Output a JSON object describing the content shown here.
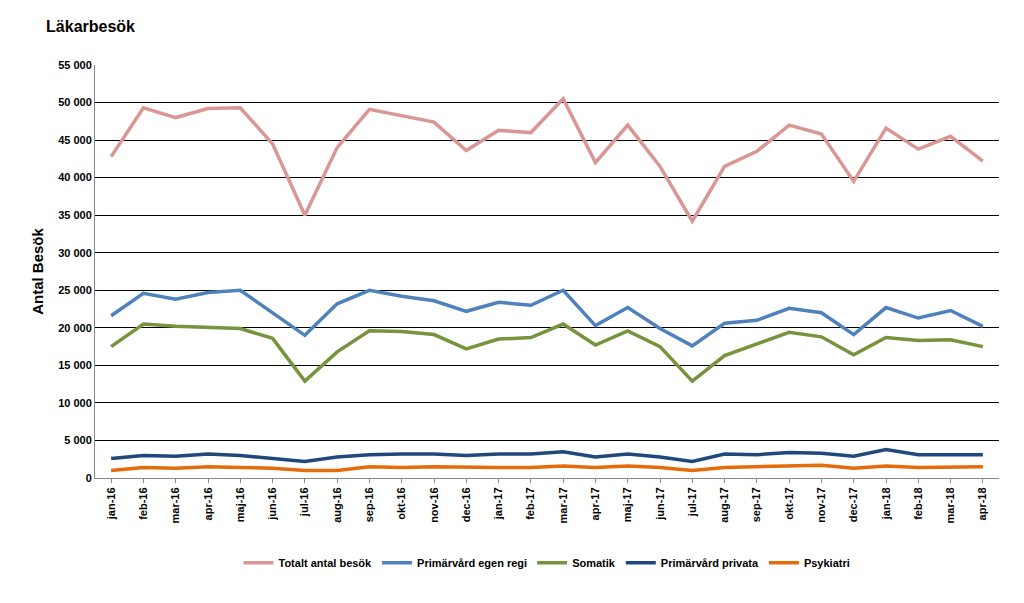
{
  "chart_data": {
    "type": "line",
    "title": "Läkarbesök",
    "y_label": "Antal Besök",
    "categories": [
      "jan-16",
      "feb-16",
      "mar-16",
      "apr-16",
      "maj-16",
      "jun-16",
      "jul-16",
      "aug-16",
      "sep-16",
      "okt-16",
      "nov-16",
      "dec-16",
      "jan-17",
      "feb-17",
      "mar-17",
      "apr-17",
      "maj-17",
      "jun-17",
      "jul-17",
      "aug-17",
      "sep-17",
      "okt-17",
      "nov-17",
      "dec-17",
      "jan-18",
      "feb-18",
      "mar-18",
      "apr-18"
    ],
    "series": [
      {
        "name": "Totalt antal besök",
        "color": "#d99694",
        "values": [
          42800,
          49300,
          48000,
          49200,
          49300,
          44500,
          35000,
          44000,
          49100,
          48200,
          47400,
          43600,
          46300,
          46000,
          50500,
          42000,
          47000,
          41500,
          34200,
          41500,
          43500,
          47000,
          45800,
          39500,
          46600,
          43800,
          45500,
          42200
        ]
      },
      {
        "name": "Primärvård egen regi",
        "color": "#4f81bd",
        "values": [
          21600,
          24600,
          23800,
          24700,
          25000,
          22000,
          19000,
          23200,
          25000,
          24200,
          23600,
          22200,
          23400,
          23000,
          25000,
          20300,
          22700,
          19900,
          17600,
          20600,
          21000,
          22600,
          22000,
          19100,
          22700,
          21300,
          22300,
          20200
        ]
      },
      {
        "name": "Somatik",
        "color": "#77933c",
        "values": [
          17500,
          20500,
          20200,
          20000,
          19900,
          18600,
          12900,
          16800,
          19600,
          19500,
          19100,
          17200,
          18500,
          18700,
          20500,
          17700,
          19600,
          17500,
          12900,
          16300,
          17900,
          19400,
          18800,
          16400,
          18700,
          18300,
          18400,
          17500
        ]
      },
      {
        "name": "Primärvård privata",
        "color": "#1f497d",
        "values": [
          2600,
          3000,
          2900,
          3200,
          3000,
          2600,
          2200,
          2800,
          3100,
          3200,
          3200,
          3000,
          3200,
          3200,
          3500,
          2800,
          3200,
          2800,
          2200,
          3200,
          3100,
          3400,
          3300,
          2900,
          3800,
          3100,
          3100,
          3100
        ]
      },
      {
        "name": "Psykiatri",
        "color": "#e46c0a",
        "values": [
          1000,
          1400,
          1300,
          1500,
          1400,
          1300,
          1000,
          1000,
          1500,
          1400,
          1500,
          1400,
          1400,
          1400,
          1600,
          1400,
          1600,
          1400,
          1000,
          1400,
          1500,
          1700,
          1700,
          1300,
          1600,
          1400,
          1500,
          1500
        ]
      }
    ],
    "ylim": [
      0,
      55000
    ],
    "yticks": [
      0,
      {
        "value": 5000,
        "label": "5 000"
      },
      {
        "value": 10000,
        "label": "10 000"
      },
      {
        "value": 15000,
        "label": "15 000"
      },
      {
        "value": 20000,
        "label": "20 000"
      },
      {
        "value": 25000,
        "label": "25 000"
      },
      {
        "value": 30000,
        "label": "30 000"
      },
      {
        "value": 35000,
        "label": "35 000"
      },
      {
        "value": 40000,
        "label": "40 000"
      },
      {
        "value": 45000,
        "label": "45 000"
      },
      {
        "value": 50000,
        "label": "50 000"
      },
      {
        "value": 55000,
        "label": "55 000"
      }
    ],
    "grid": true,
    "legend": "bottom"
  }
}
